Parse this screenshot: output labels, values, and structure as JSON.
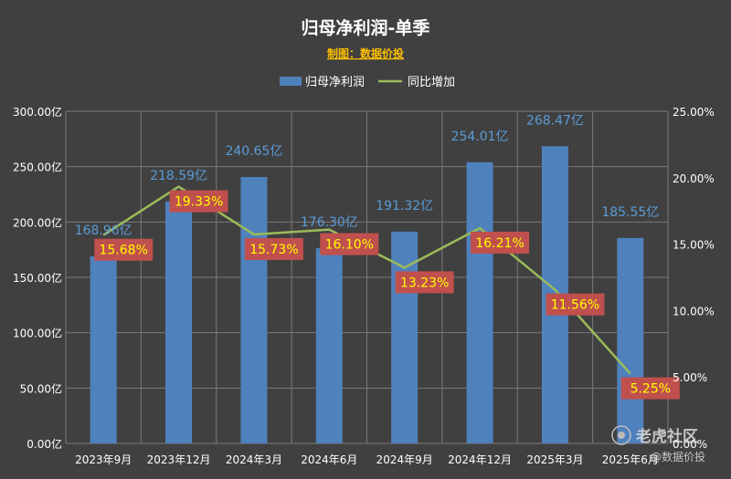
{
  "chart_data": {
    "type": "bar",
    "title": "归母净利润-单季",
    "subtitle": "制图：数据价投",
    "categories": [
      "2023年9月",
      "2023年12月",
      "2024年3月",
      "2024年6月",
      "2024年9月",
      "2024年12月",
      "2025年3月",
      "2025年6月"
    ],
    "series": [
      {
        "name": "归母净利润",
        "kind": "bar",
        "axis": "left",
        "values": [
          168.96,
          218.59,
          240.65,
          176.3,
          191.32,
          254.01,
          268.47,
          185.55
        ],
        "labels": [
          "168.96亿",
          "218.59亿",
          "240.65亿",
          "176.30亿",
          "191.32亿",
          "254.01亿",
          "268.47亿",
          "185.55亿"
        ],
        "color": "#4f81bd"
      },
      {
        "name": "同比增加",
        "kind": "line",
        "axis": "right",
        "values": [
          15.68,
          19.33,
          15.73,
          16.1,
          13.23,
          16.21,
          11.56,
          5.25
        ],
        "labels": [
          "15.68%",
          "19.33%",
          "15.73%",
          "16.10%",
          "13.23%",
          "16.21%",
          "11.56%",
          "5.25%"
        ],
        "color": "#9bbb59"
      }
    ],
    "y_left": {
      "ylim": [
        0,
        300
      ],
      "ticks": [
        "0.00亿",
        "50.00亿",
        "100.00亿",
        "150.00亿",
        "200.00亿",
        "250.00亿",
        "300.00亿"
      ]
    },
    "y_right": {
      "ylim": [
        0,
        25
      ],
      "ticks": [
        "0.00%",
        "5.00%",
        "10.00%",
        "15.00%",
        "20.00%",
        "25.00%"
      ]
    },
    "grid": true,
    "legend_position": "top-center",
    "colors": {
      "background": "#404040",
      "title": "#ffffff",
      "subtitle": "#ffc000",
      "bar_label": "#5b9bd5",
      "pct_label_bg": "#c0504d",
      "pct_label_text": "#ffff00",
      "axis_text": "#ffffff",
      "grid": "#7a7a7a"
    }
  },
  "watermark": {
    "site": "老虎社区",
    "author": "@数据价投"
  }
}
